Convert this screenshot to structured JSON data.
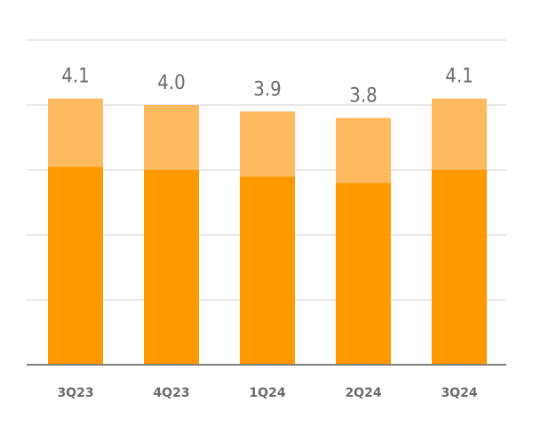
{
  "chart_data": {
    "type": "bar",
    "stacked": true,
    "categories": [
      "3Q23",
      "4Q23",
      "1Q24",
      "2Q24",
      "3Q24"
    ],
    "series": [
      {
        "values": [
          3.05,
          3.0,
          2.9,
          2.8,
          3.0
        ],
        "color": "#FF9900"
      },
      {
        "values": [
          1.05,
          1.0,
          1.0,
          1.0,
          1.1
        ],
        "color": "#FFB95E"
      }
    ],
    "totals": [
      "4.1",
      "4.0",
      "3.9",
      "3.8",
      "4.1"
    ],
    "ylim": [
      0,
      5
    ],
    "grid": true,
    "gridline_color": "#e0e0e0",
    "axis_color": "#7f7f7f",
    "label_color": "#6b6b6b"
  }
}
